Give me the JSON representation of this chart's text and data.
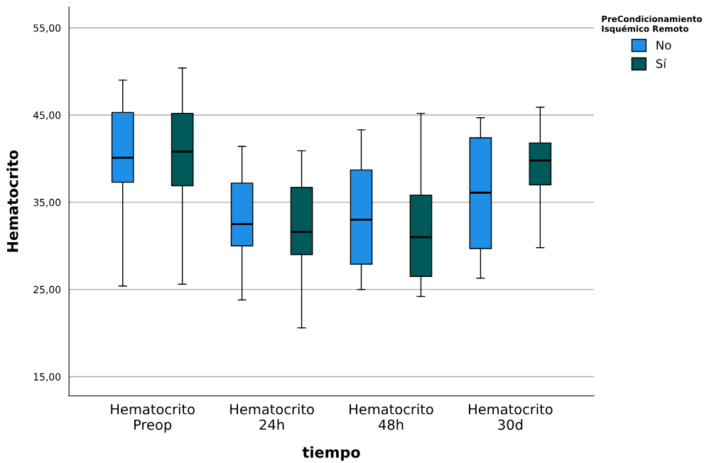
{
  "chart_data": {
    "type": "box",
    "xlabel": "tiempo",
    "ylabel": "Hematocrito",
    "legend_title": "PreCondicionamiento\nIsquémico Remoto",
    "legend": "top right",
    "grid": "y",
    "categories": [
      "Hematocrito\nPreop",
      "Hematocrito\n24h",
      "Hematocrito\n48h",
      "Hematocrito\n30d"
    ],
    "ylim": [
      12.8,
      57.4
    ],
    "yticks": [
      {
        "value": 15,
        "label": "15,00"
      },
      {
        "value": 25,
        "label": "25,00"
      },
      {
        "value": 35,
        "label": "35,00"
      },
      {
        "value": 45,
        "label": "45,00"
      },
      {
        "value": 55,
        "label": "55,00"
      }
    ],
    "series": [
      {
        "name": "No",
        "color": "#1f8fe6",
        "boxes": [
          {
            "low": 25.4,
            "q1": 37.3,
            "median": 40.1,
            "q3": 45.3,
            "high": 49.0
          },
          {
            "low": 23.8,
            "q1": 30.0,
            "median": 32.5,
            "q3": 37.2,
            "high": 41.4
          },
          {
            "low": 25.0,
            "q1": 27.9,
            "median": 33.0,
            "q3": 38.7,
            "high": 43.3
          },
          {
            "low": 26.3,
            "q1": 29.7,
            "median": 36.1,
            "q3": 42.4,
            "high": 44.7
          }
        ]
      },
      {
        "name": "Sí",
        "color": "#005a5a",
        "boxes": [
          {
            "low": 25.6,
            "q1": 36.9,
            "median": 40.8,
            "q3": 45.2,
            "high": 50.4
          },
          {
            "low": 20.6,
            "q1": 29.0,
            "median": 31.6,
            "q3": 36.7,
            "high": 40.9
          },
          {
            "low": 24.2,
            "q1": 26.5,
            "median": 31.0,
            "q3": 35.8,
            "high": 45.2
          },
          {
            "low": 29.8,
            "q1": 37.0,
            "median": 39.8,
            "q3": 41.8,
            "high": 45.9
          }
        ]
      }
    ]
  }
}
